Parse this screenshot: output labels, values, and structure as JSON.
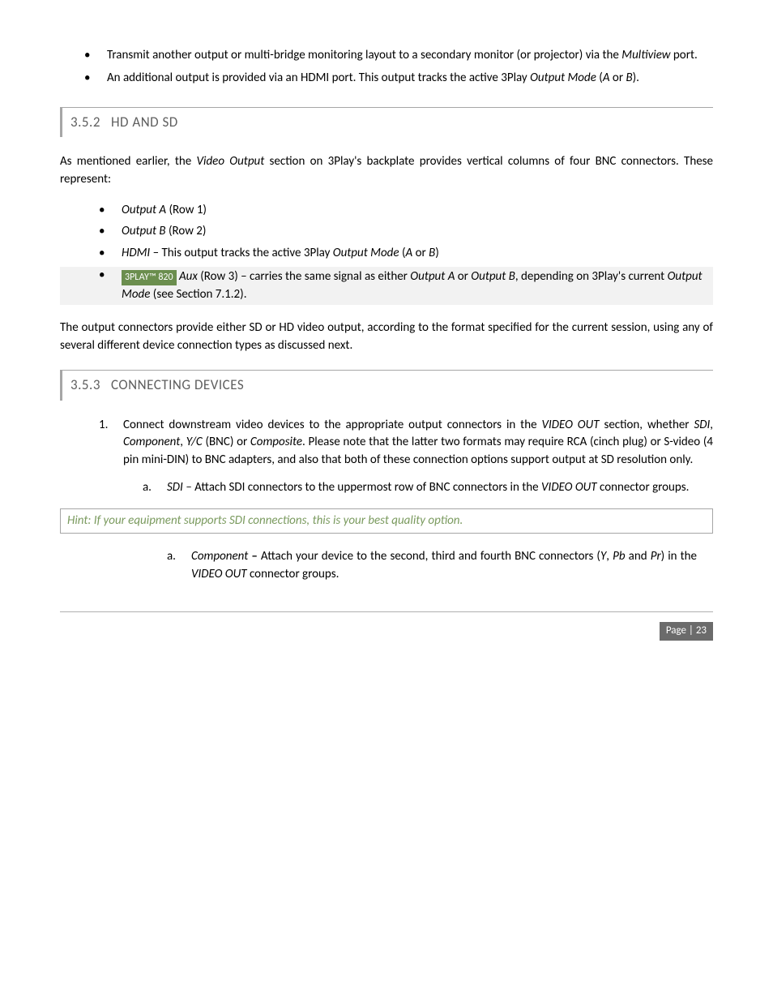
{
  "colors": {
    "text": "#000000",
    "background": "#ffffff",
    "section_head_text": "#5f5f5f",
    "section_border": "#a6a6a6",
    "highlight_bg": "#f2f2f2",
    "tag_bg": "#6b8e4e",
    "tag_text": "#ffffff",
    "hint_border": "#a6a6a6",
    "hint_text": "#7a9a5e",
    "footer_rule": "#b0b0b0",
    "badge_bg": "#6b6b6b",
    "badge_text": "#ffffff"
  },
  "intro_bullets": [
    {
      "pre": "Transmit another output or multi-bridge monitoring layout to a secondary monitor (or projector) via the ",
      "em1": "Multiview",
      "post": " port."
    },
    {
      "pre": "An additional output is provided via an HDMI port.  This output tracks the active 3Play ",
      "em1": "Output Mode",
      "mid": " (",
      "em2": "A",
      "mid2": " or ",
      "em3": "B",
      "post": ")."
    }
  ],
  "sections": {
    "s352": {
      "num": "3.5.2",
      "title": "HD AND SD"
    },
    "s353": {
      "num": "3.5.3",
      "title": "CONNECTING DEVICES"
    }
  },
  "para_hd_sd_intro": {
    "pre": "As mentioned earlier, the ",
    "em": "Video Output",
    "post": " section on 3Play's backplate provides vertical columns of four BNC connectors.  These represent:"
  },
  "hd_sd_bullets": {
    "b1": {
      "em": "Output A",
      "post": " (Row 1)"
    },
    "b2": {
      "em": "Output B",
      "post": " (Row 2)"
    },
    "b3": {
      "em1": "HDMI",
      "mid1": " – This output tracks the active 3Play ",
      "em2": "Output Mode",
      "mid2": " (",
      "em3": "A",
      "mid3": " or ",
      "em4": "B",
      "post": ")"
    },
    "b4": {
      "tag_prefix": "3P",
      "tag_small": "LAY",
      "tag_suffix": "™ 820",
      "sp": "  ",
      "em1": "Aux",
      "mid1": " (Row 3) – carries the same signal as either ",
      "em2": "Output A",
      "mid2": " or ",
      "em3": "Output B",
      "mid3": ", depending on 3Play's current ",
      "em4": "Output Mode",
      "post": " (see Section 7.1.2)."
    }
  },
  "para_output_conn": "The output connectors provide either SD or HD video output, according to the format specified for the current session, using any of several different device connection types as discussed next.",
  "connecting": {
    "step1": {
      "num": "1.",
      "pre": "Connect downstream video devices to the appropriate output connectors in the ",
      "em1": "VIDEO OUT",
      "mid1": " section, whether ",
      "em2": "SDI",
      "c1": ", ",
      "em3": "Component",
      "c2": ", ",
      "em4": "Y/C",
      "mid2": " (BNC) or ",
      "em5": "Composite",
      "post": ".  Please note that the latter two formats may require RCA (cinch plug) or S-video (4 pin mini-DIN) to BNC adapters, and also that both of these connection options support output at SD resolution only."
    },
    "a_sdi": {
      "lbl": "a.",
      "em1": "SDI",
      "dash": " – ",
      "mid": " Attach SDI connectors to the uppermost row of BNC connectors in the ",
      "em2": "VIDEO OUT",
      "post": " connector groups."
    },
    "a_component": {
      "lbl": "a.",
      "em1": "Component",
      "dash": " – ",
      "mid1": " Attach your device to the second, third and fourth BNC connectors (",
      "em2": "Y",
      "c1": ", ",
      "em3": "Pb",
      "mid2": " and ",
      "em4": "Pr",
      "mid3": ") in the ",
      "em5": "VIDEO OUT",
      "post": " connector groups."
    }
  },
  "hint": "Hint: If your equipment supports SDI connections, this is your best quality option.",
  "footer": {
    "label": "Page | 23"
  }
}
